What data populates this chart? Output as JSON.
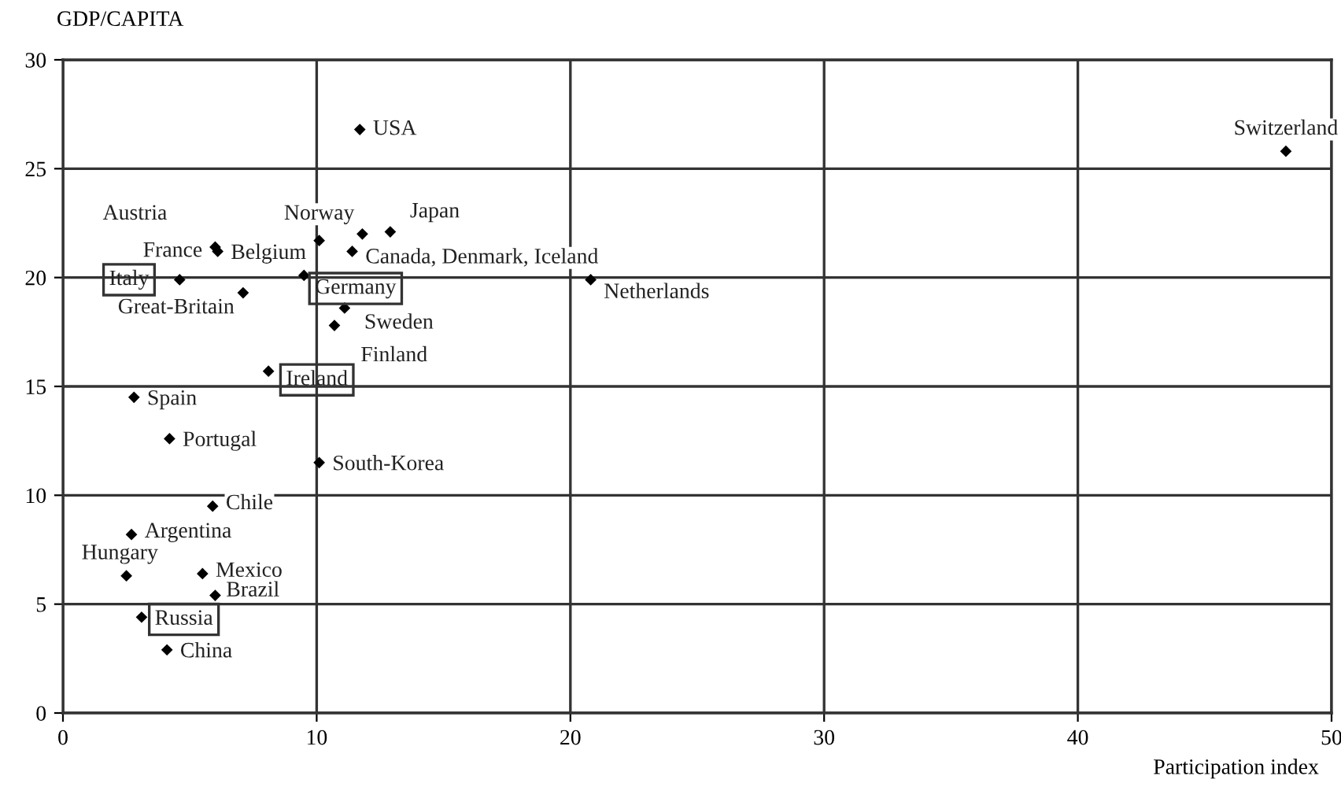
{
  "chart_data": {
    "type": "scatter",
    "xlabel": "Participation index",
    "ylabel": "GDP/CAPITA",
    "x": [
      11.7,
      48.2,
      10.1,
      12.9,
      11.4,
      11.8,
      6.0,
      6.1,
      4.6,
      7.1,
      9.5,
      11.1,
      10.7,
      20.8,
      8.1,
      2.8,
      4.2,
      10.1,
      5.9,
      2.7,
      2.5,
      5.5,
      6.0,
      3.1,
      4.1
    ],
    "values": [
      26.8,
      25.8,
      21.7,
      22.1,
      21.2,
      22.0,
      21.4,
      21.2,
      19.9,
      19.3,
      20.1,
      18.6,
      17.8,
      19.9,
      15.7,
      14.5,
      12.6,
      11.5,
      9.5,
      8.2,
      6.3,
      6.4,
      5.4,
      4.4,
      2.9
    ],
    "color": "#000000",
    "marker": "diamond",
    "xlim": [
      0,
      50
    ],
    "xticks": [
      0,
      10,
      20,
      30,
      40,
      50
    ],
    "ylim": [
      0,
      30
    ],
    "yticks": [
      0,
      5,
      10,
      15,
      20,
      25,
      30
    ],
    "grid": true,
    "annotations": [
      {
        "text": "USA",
        "x": 11.7,
        "y": 26.8
      },
      {
        "text": "Switzerland",
        "x": 48.2,
        "y": 25.8
      },
      {
        "text": "Norway",
        "x": 10.1,
        "y": 21.7
      },
      {
        "text": "Japan",
        "x": 12.9,
        "y": 22.1
      },
      {
        "text": "Canada, Denmark, Iceland",
        "x": 11.4,
        "y": 21.2
      },
      {
        "text": "Austria",
        "x": 6.0,
        "y": 21.4
      },
      {
        "text": "France",
        "x": 6.1,
        "y": 21.2
      },
      {
        "text": "Belgium",
        "x": 6.1,
        "y": 21.2
      },
      {
        "text": "Italy",
        "x": 4.6,
        "y": 19.9
      },
      {
        "text": "Great-Britain",
        "x": 7.1,
        "y": 19.3
      },
      {
        "text": "Germany",
        "x": 9.5,
        "y": 20.1
      },
      {
        "text": "Sweden",
        "x": 11.1,
        "y": 18.6
      },
      {
        "text": "Finland",
        "x": 10.7,
        "y": 17.8
      },
      {
        "text": "Netherlands",
        "x": 20.8,
        "y": 19.9
      },
      {
        "text": "Ireland",
        "x": 8.1,
        "y": 15.7
      },
      {
        "text": "Spain",
        "x": 2.8,
        "y": 14.5
      },
      {
        "text": "Portugal",
        "x": 4.2,
        "y": 12.6
      },
      {
        "text": "South-Korea",
        "x": 10.1,
        "y": 11.5
      },
      {
        "text": "Chile",
        "x": 5.9,
        "y": 9.5
      },
      {
        "text": "Argentina",
        "x": 2.7,
        "y": 8.2
      },
      {
        "text": "Hungary",
        "x": 2.5,
        "y": 6.3
      },
      {
        "text": "Mexico",
        "x": 5.5,
        "y": 6.4
      },
      {
        "text": "Brazil",
        "x": 6.0,
        "y": 5.4
      },
      {
        "text": "Russia",
        "x": 3.1,
        "y": 4.4
      },
      {
        "text": "China",
        "x": 4.1,
        "y": 2.9
      }
    ]
  }
}
